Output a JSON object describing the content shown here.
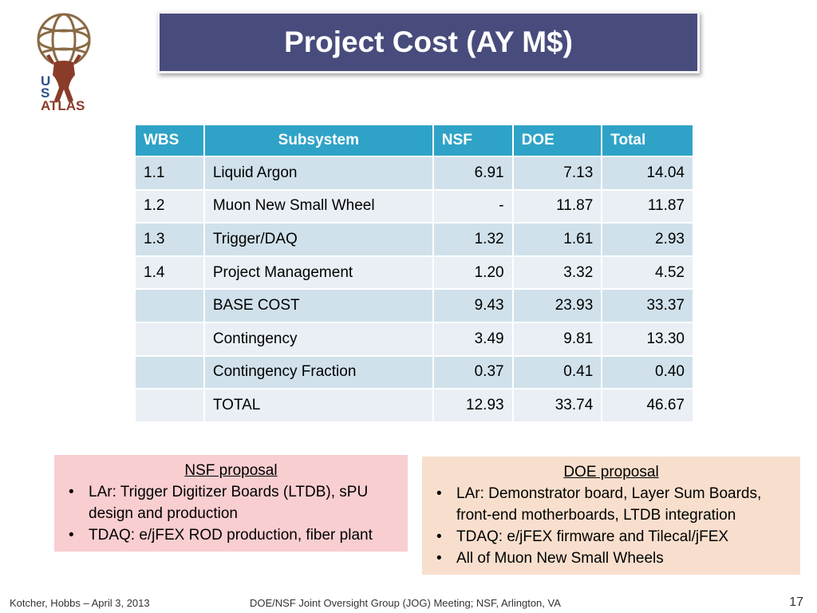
{
  "logo": {
    "letters": [
      "U",
      "S"
    ],
    "word": "ATLAS"
  },
  "title": "Project Cost (AY M$)",
  "table": {
    "headers": [
      "WBS",
      "Subsystem",
      "NSF",
      "DOE",
      "Total"
    ],
    "rows": [
      [
        "1.1",
        "Liquid Argon",
        "6.91",
        "7.13",
        "14.04"
      ],
      [
        "1.2",
        "Muon New Small Wheel",
        "-",
        "11.87",
        "11.87"
      ],
      [
        "1.3",
        "Trigger/DAQ",
        "1.32",
        "1.61",
        "2.93"
      ],
      [
        "1.4",
        "Project Management",
        "1.20",
        "3.32",
        "4.52"
      ],
      [
        "",
        "BASE COST",
        "9.43",
        "23.93",
        "33.37"
      ],
      [
        "",
        "Contingency",
        "3.49",
        "9.81",
        "13.30"
      ],
      [
        "",
        "Contingency Fraction",
        "0.37",
        "0.41",
        "0.40"
      ],
      [
        "",
        "TOTAL",
        "12.93",
        "33.74",
        "46.67"
      ]
    ]
  },
  "nsf": {
    "heading": "NSF proposal",
    "bullets": [
      "LAr:  Trigger Digitizer Boards (LTDB), sPU design and production",
      "TDAQ:  e/jFEX ROD production, fiber plant"
    ]
  },
  "doe": {
    "heading": "DOE proposal",
    "bullets": [
      "LAr:  Demonstrator board, Layer Sum Boards, front-end motherboards, LTDB integration",
      "TDAQ:  e/jFEX firmware and Tilecal/jFEX",
      "All of Muon New Small Wheels"
    ]
  },
  "footer": {
    "left": "Kotcher, Hobbs – April 3, 2013",
    "center": "DOE/NSF Joint Oversight Group (JOG) Meeting; NSF, Arlington, VA",
    "page": "17"
  },
  "bullet_glyph": "•",
  "colors": {
    "title_bg": "#484c7c",
    "table_header": "#2fa3c7",
    "row_dark": "#d0e1eb",
    "row_light": "#e9eff4",
    "nsf_box": "#f9ced1",
    "doe_box": "#f8dfcd"
  }
}
